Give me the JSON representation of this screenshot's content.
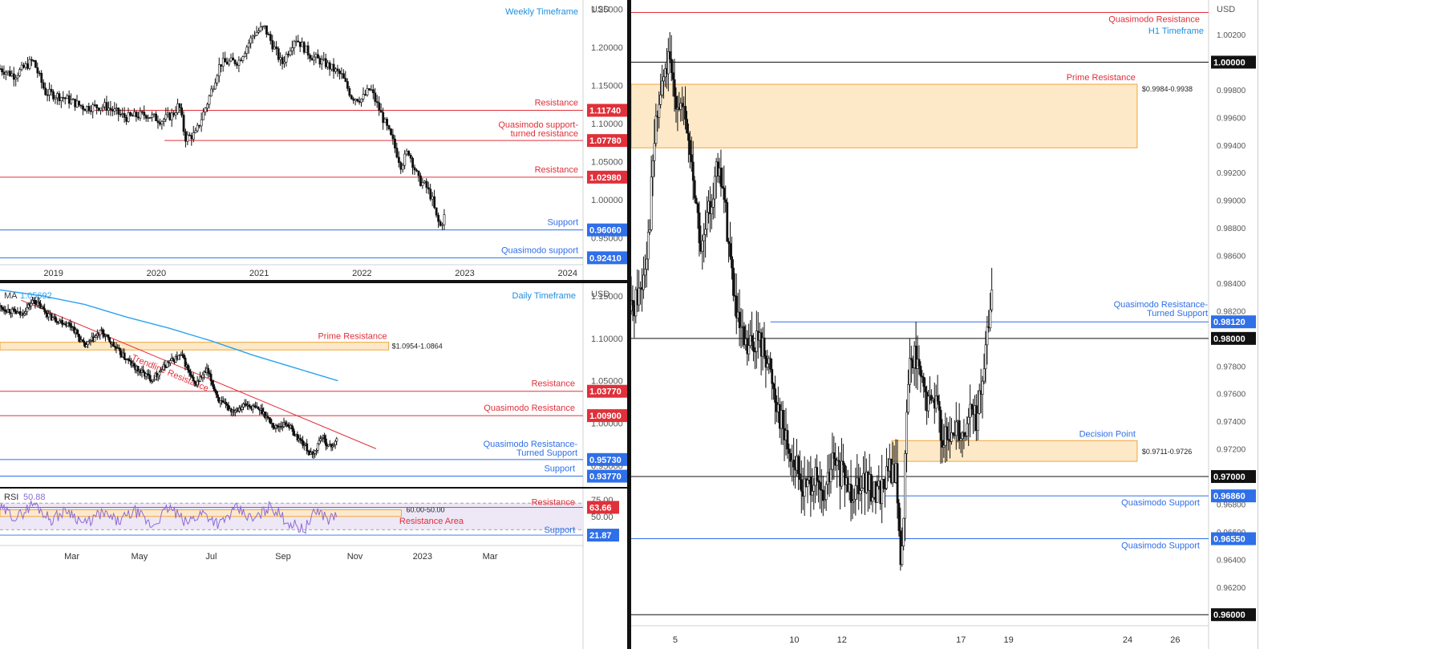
{
  "colors": {
    "candle": "#111111",
    "red": "#e0303a",
    "blue": "#2f6fe8",
    "black": "#111111",
    "zone_fill": "#fde9c8",
    "zone_border": "#f0a63a",
    "ma": "#2aa3f0",
    "rsi": "#8c6cd6",
    "rsi_band": "#ede7f6",
    "label_blue": "#1e8fe0"
  },
  "chart_data": [
    {
      "type": "candlestick",
      "title": "Weekly Timeframe",
      "currency": "USD",
      "ylim": [
        0.915,
        1.262
      ],
      "yticks": [
        "1.25000",
        "1.20000",
        "1.15000",
        "1.10000",
        "1.05000",
        "1.00000",
        "0.95000"
      ],
      "xlim": [
        2018.48,
        2024.15
      ],
      "xticks": [
        {
          "x": 2019,
          "label": "2019"
        },
        {
          "x": 2020,
          "label": "2020"
        },
        {
          "x": 2021,
          "label": "2021"
        },
        {
          "x": 2022,
          "label": "2022"
        },
        {
          "x": 2023,
          "label": "2023"
        },
        {
          "x": 2024,
          "label": "2024"
        }
      ],
      "path": [
        [
          2018.48,
          1.172
        ],
        [
          2018.62,
          1.163
        ],
        [
          2018.8,
          1.183
        ],
        [
          2018.92,
          1.141
        ],
        [
          2019.1,
          1.134
        ],
        [
          2019.3,
          1.121
        ],
        [
          2019.5,
          1.123
        ],
        [
          2019.7,
          1.108
        ],
        [
          2019.9,
          1.112
        ],
        [
          2020.05,
          1.104
        ],
        [
          2020.16,
          1.112
        ],
        [
          2020.22,
          1.125
        ],
        [
          2020.28,
          1.081
        ],
        [
          2020.38,
          1.086
        ],
        [
          2020.5,
          1.129
        ],
        [
          2020.62,
          1.179
        ],
        [
          2020.8,
          1.182
        ],
        [
          2020.95,
          1.218
        ],
        [
          2021.05,
          1.226
        ],
        [
          2021.22,
          1.178
        ],
        [
          2021.35,
          1.213
        ],
        [
          2021.5,
          1.189
        ],
        [
          2021.65,
          1.178
        ],
        [
          2021.8,
          1.163
        ],
        [
          2021.9,
          1.135
        ],
        [
          2022.0,
          1.132
        ],
        [
          2022.08,
          1.146
        ],
        [
          2022.18,
          1.114
        ],
        [
          2022.3,
          1.076
        ],
        [
          2022.38,
          1.045
        ],
        [
          2022.45,
          1.065
        ],
        [
          2022.55,
          1.026
        ],
        [
          2022.62,
          1.018
        ],
        [
          2022.68,
          1.002
        ],
        [
          2022.72,
          0.978
        ],
        [
          2022.76,
          0.965
        ],
        [
          2022.8,
          0.978
        ]
      ],
      "levels": [
        {
          "value": 1.1174,
          "label": "Resistance",
          "price": "1.11740",
          "color": "red",
          "x0": 2019.4
        },
        {
          "value": 1.0778,
          "label": "Quasimodo support-",
          "label2": "turned resistance",
          "price": "1.07780",
          "color": "red",
          "x0": 2020.08
        },
        {
          "value": 1.0298,
          "label": "Resistance",
          "price": "1.02980",
          "color": "red",
          "x0": 2018.48
        },
        {
          "value": 0.9606,
          "label": "Support",
          "price": "0.96060",
          "color": "blue",
          "x0": 2018.48
        },
        {
          "value": 0.9241,
          "label": "Quasimodo support",
          "price": "0.92410",
          "color": "blue",
          "x0": 2018.48
        }
      ]
    },
    {
      "type": "candlestick",
      "title": "Daily Timeframe",
      "currency": "USD",
      "indicator": {
        "name": "MA",
        "value": "1.05692"
      },
      "ylim": [
        0.925,
        1.165
      ],
      "yticks": [
        "1.15000",
        "1.10000",
        "1.05000",
        "1.00000",
        "0.95000"
      ],
      "xlim": [
        2022.0,
        2023.38
      ],
      "xticks": [
        {
          "x": 2022.17,
          "label": "Mar"
        },
        {
          "x": 2022.33,
          "label": "May"
        },
        {
          "x": 2022.5,
          "label": "Jul"
        },
        {
          "x": 2022.67,
          "label": "Sep"
        },
        {
          "x": 2022.84,
          "label": "Nov"
        },
        {
          "x": 2023.0,
          "label": "2023"
        },
        {
          "x": 2023.16,
          "label": "Mar"
        }
      ],
      "path": [
        [
          2022.0,
          1.137
        ],
        [
          2022.05,
          1.128
        ],
        [
          2022.08,
          1.145
        ],
        [
          2022.12,
          1.125
        ],
        [
          2022.17,
          1.115
        ],
        [
          2022.2,
          1.09
        ],
        [
          2022.24,
          1.108
        ],
        [
          2022.28,
          1.085
        ],
        [
          2022.32,
          1.065
        ],
        [
          2022.36,
          1.052
        ],
        [
          2022.4,
          1.072
        ],
        [
          2022.43,
          1.08
        ],
        [
          2022.46,
          1.045
        ],
        [
          2022.49,
          1.062
        ],
        [
          2022.52,
          1.025
        ],
        [
          2022.55,
          1.015
        ],
        [
          2022.58,
          1.022
        ],
        [
          2022.62,
          1.015
        ],
        [
          2022.65,
          0.995
        ],
        [
          2022.68,
          1.0
        ],
        [
          2022.7,
          0.985
        ],
        [
          2022.72,
          0.975
        ],
        [
          2022.74,
          0.96
        ],
        [
          2022.76,
          0.985
        ],
        [
          2022.78,
          0.972
        ],
        [
          2022.8,
          0.98
        ]
      ],
      "ma_line": [
        [
          2022.0,
          1.157
        ],
        [
          2022.1,
          1.15
        ],
        [
          2022.2,
          1.14
        ],
        [
          2022.3,
          1.125
        ],
        [
          2022.4,
          1.112
        ],
        [
          2022.5,
          1.097
        ],
        [
          2022.6,
          1.08
        ],
        [
          2022.7,
          1.065
        ],
        [
          2022.8,
          1.05
        ]
      ],
      "trendline": {
        "label": "Trendline Resistance",
        "points": [
          [
            2022.05,
            1.145
          ],
          [
            2022.89,
            0.97
          ]
        ]
      },
      "zones": [
        {
          "high": 1.0954,
          "low": 1.0864,
          "label": "Prime Resistance",
          "range": "$1.0954-1.0864",
          "x0": 2022.0,
          "x1": 2022.92
        }
      ],
      "levels": [
        {
          "value": 1.0377,
          "label": "Resistance",
          "price": "1.03770",
          "color": "red",
          "x0": 2022.0
        },
        {
          "value": 1.009,
          "label": "Quasimodo Resistance",
          "price": "1.00900",
          "color": "red",
          "x0": 2022.0
        },
        {
          "value": 0.9573,
          "label": "Quasimodo Resistance-",
          "label2": "Turned Support",
          "price": "0.95730",
          "color": "blue",
          "x0": 2022.0
        },
        {
          "value": 0.9377,
          "label": "Support",
          "price": "0.93770",
          "color": "blue",
          "x0": 2022.0
        }
      ]
    },
    {
      "type": "line",
      "title": "RSI",
      "indicator": {
        "name": "RSI",
        "value": "50.88"
      },
      "ylim": [
        5,
        92
      ],
      "yticks": [
        "75.00",
        "50.00"
      ],
      "xlim": [
        2022.0,
        2023.38
      ],
      "series": [
        {
          "values": [
            [
              2022.0,
              62
            ],
            [
              2022.04,
              48
            ],
            [
              2022.08,
              70
            ],
            [
              2022.12,
              45
            ],
            [
              2022.16,
              60
            ],
            [
              2022.2,
              38
            ],
            [
              2022.24,
              55
            ],
            [
              2022.28,
              42
            ],
            [
              2022.32,
              58
            ],
            [
              2022.36,
              35
            ],
            [
              2022.4,
              64
            ],
            [
              2022.44,
              40
            ],
            [
              2022.48,
              56
            ],
            [
              2022.52,
              38
            ],
            [
              2022.56,
              62
            ],
            [
              2022.6,
              44
            ],
            [
              2022.64,
              66
            ],
            [
              2022.68,
              42
            ],
            [
              2022.72,
              30
            ],
            [
              2022.75,
              60
            ],
            [
              2022.78,
              45
            ],
            [
              2022.8,
              55
            ]
          ]
        }
      ],
      "zones": [
        {
          "high": 60,
          "low": 50,
          "label": "Resistance Area",
          "range": "60.00-50.00",
          "x0": 2022.0,
          "x1": 2022.95
        }
      ],
      "levels": [
        {
          "value": 63.66,
          "label": "Resistance",
          "price": "63.66",
          "color": "red"
        },
        {
          "value": 21.87,
          "label": "Support",
          "price": "21.87",
          "color": "blue"
        }
      ]
    },
    {
      "type": "candlestick",
      "title": "H1 Timeframe",
      "currency": "USD",
      "ylim": [
        0.9592,
        1.0045
      ],
      "yticks": [
        "1.00200",
        "0.99800",
        "0.99600",
        "0.99400",
        "0.99200",
        "0.99000",
        "0.98800",
        "0.98600",
        "0.98400",
        "0.98200",
        "0.97800",
        "0.97600",
        "0.97400",
        "0.97200",
        "0.96800",
        "0.96600",
        "0.96400",
        "0.96200"
      ],
      "xlim": [
        3.15,
        27.4
      ],
      "xticks": [
        {
          "x": 5,
          "label": "5"
        },
        {
          "x": 10,
          "label": "10"
        },
        {
          "x": 12,
          "label": "12"
        },
        {
          "x": 17,
          "label": "17"
        },
        {
          "x": 19,
          "label": "19"
        },
        {
          "x": 24,
          "label": "24"
        },
        {
          "x": 26,
          "label": "26"
        }
      ],
      "path": [
        [
          3.15,
          0.982
        ],
        [
          3.6,
          0.984
        ],
        [
          3.9,
          0.988
        ],
        [
          4.1,
          0.994
        ],
        [
          4.4,
          0.998
        ],
        [
          4.7,
          1.0
        ],
        [
          4.95,
          0.998
        ],
        [
          5.2,
          0.997
        ],
        [
          5.5,
          0.995
        ],
        [
          5.8,
          0.991
        ],
        [
          6.1,
          0.986
        ],
        [
          6.4,
          0.989
        ],
        [
          6.7,
          0.992
        ],
        [
          7.0,
          0.991
        ],
        [
          7.3,
          0.986
        ],
        [
          7.6,
          0.981
        ],
        [
          8.0,
          0.979
        ],
        [
          8.4,
          0.98
        ],
        [
          8.8,
          0.979
        ],
        [
          9.2,
          0.976
        ],
        [
          9.6,
          0.973
        ],
        [
          10.0,
          0.971
        ],
        [
          10.4,
          0.969
        ],
        [
          10.8,
          0.97
        ],
        [
          11.2,
          0.968
        ],
        [
          11.6,
          0.971
        ],
        [
          12.0,
          0.97
        ],
        [
          12.4,
          0.969
        ],
        [
          12.8,
          0.97
        ],
        [
          13.2,
          0.969
        ],
        [
          13.6,
          0.969
        ],
        [
          14.0,
          0.9705
        ],
        [
          14.3,
          0.97
        ],
        [
          14.45,
          0.9635
        ],
        [
          14.6,
          0.968
        ],
        [
          14.8,
          0.978
        ],
        [
          15.0,
          0.979
        ],
        [
          15.3,
          0.977
        ],
        [
          15.6,
          0.975
        ],
        [
          15.9,
          0.976
        ],
        [
          16.2,
          0.973
        ],
        [
          16.5,
          0.972
        ],
        [
          16.8,
          0.974
        ],
        [
          17.1,
          0.973
        ],
        [
          17.4,
          0.975
        ],
        [
          17.7,
          0.974
        ],
        [
          17.9,
          0.977
        ],
        [
          18.1,
          0.98
        ],
        [
          18.3,
          0.984
        ]
      ],
      "zones": [
        {
          "high": 0.9984,
          "low": 0.9938,
          "label": "Prime Resistance",
          "range": "$0.9984-0.9938",
          "x0": 3.15,
          "x1": 24.4
        },
        {
          "high": 0.9726,
          "low": 0.9711,
          "label": "Decision Point",
          "range": "$0.9711-0.9726",
          "x0": 14.1,
          "x1": 24.4
        }
      ],
      "levels": [
        {
          "value": 1.0036,
          "label": "Quasimodo Resistance",
          "price": "",
          "color": "red",
          "x0": 3.15
        },
        {
          "value": 1.0,
          "label": "",
          "price": "1.00000",
          "color": "black",
          "x0": 3.15
        },
        {
          "value": 0.9812,
          "label": "Quasimodo Resistance-",
          "label2": "Turned Support",
          "price": "0.98120",
          "color": "blue",
          "x0": 9.0
        },
        {
          "value": 0.98,
          "label": "",
          "price": "0.98000",
          "color": "black",
          "x0": 3.15
        },
        {
          "value": 0.97,
          "label": "",
          "price": "0.97000",
          "color": "black",
          "x0": 3.15
        },
        {
          "value": 0.9686,
          "label": "Quasimodo Support",
          "price": "0.96860",
          "color": "blue",
          "x0": 13.8
        },
        {
          "value": 0.9655,
          "label": "Quasimodo Support",
          "price": "0.96550",
          "color": "blue",
          "x0": 3.15
        },
        {
          "value": 0.96,
          "label": "",
          "price": "0.96000",
          "color": "black",
          "x0": 3.15
        }
      ]
    }
  ]
}
